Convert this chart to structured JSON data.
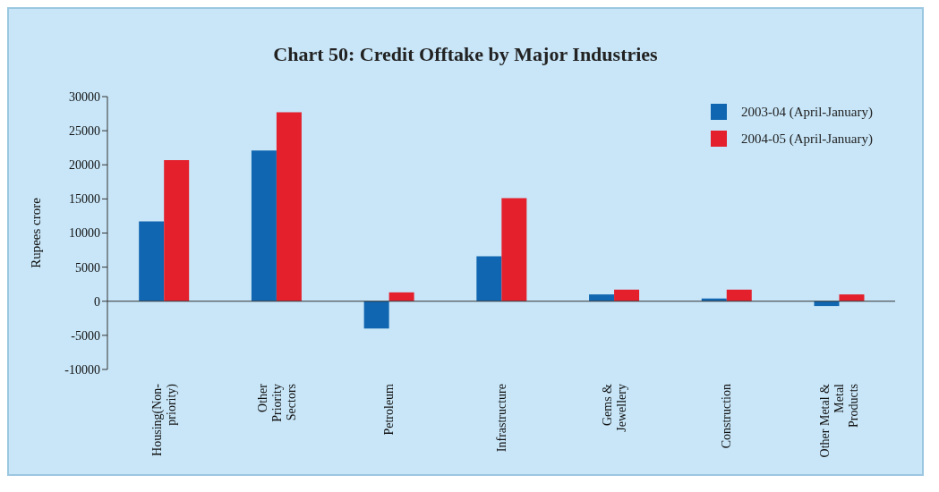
{
  "chart_data": {
    "type": "bar",
    "title": "Chart 50: Credit Offtake by Major Industries",
    "ylabel": "Rupees crore",
    "categories": [
      "Housing(Non-priority)",
      "Other Priority Sectors",
      "Petroleum",
      "Infrastructure",
      "Gems & Jewellery",
      "Construction",
      "Other Metal & Metal Products"
    ],
    "series": [
      {
        "name": "2003-04 (April-January)",
        "color": "#1066b0",
        "values": [
          11700,
          22100,
          -4000,
          6600,
          1000,
          400,
          -700
        ]
      },
      {
        "name": "2004-05 (April-January)",
        "color": "#e3202c",
        "values": [
          20700,
          27700,
          1300,
          15100,
          1700,
          1700,
          1000
        ]
      }
    ],
    "ylim": [
      -10000,
      30000
    ],
    "yticks": [
      -10000,
      -5000,
      0,
      5000,
      10000,
      15000,
      20000,
      25000,
      30000
    ],
    "legend": "top right"
  }
}
